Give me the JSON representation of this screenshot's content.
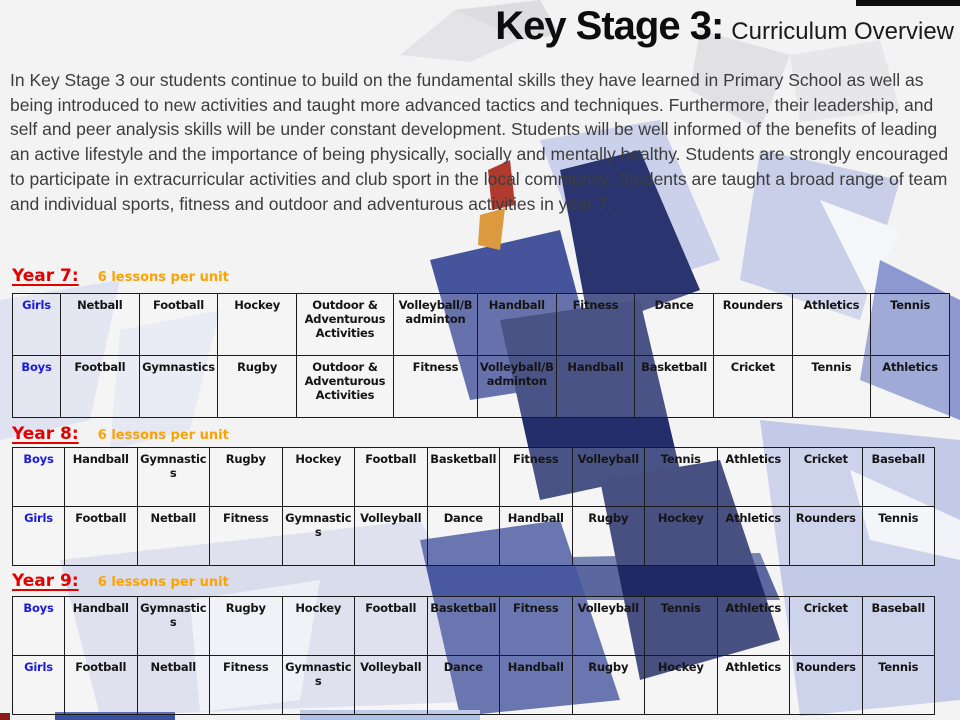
{
  "title": {
    "main": "Key Stage 3:",
    "subtitle": "Curriculum Overview"
  },
  "intro": "In Key Stage 3 our students continue to build on the fundamental skills they have learned in Primary School as well as being introduced to new activities and taught more advanced tactics and techniques. Furthermore, their leadership, and self and peer analysis skills will be under constant development. Students will be well informed of the benefits of leading an active lifestyle and the importance of being physically, socially and mentally healthy. Students are strongly encouraged to participate in extracurricular activities and club sport in the local community. Students are taught a broad range of team and individual sports, fitness and outdoor and adventurous activities in year 7.",
  "colors": {
    "year_heading": "#E50000",
    "lessons_note": "#FFA200",
    "row_label_blue": "#1A1AE0",
    "cell_text": "#151515",
    "background_palette": [
      "#C9CFE9",
      "#46549B",
      "#232E6B",
      "#E4E4E6",
      "#B03A2E",
      "#DC9A3E"
    ]
  },
  "sections": [
    {
      "heading": "Year 7:",
      "note": "6 lessons per unit",
      "rows": [
        {
          "label": "Girls",
          "cells": [
            "Netball",
            "Football",
            "Hockey",
            "Outdoor & Adventurous Activities",
            "Volleyball/Badminton",
            "Handball",
            "Fitness",
            "Dance",
            "Rounders",
            "Athletics",
            "Tennis"
          ]
        },
        {
          "label": "Boys",
          "cells": [
            "Football",
            "Gymnastics",
            "Rugby",
            "Outdoor & Adventurous Activities",
            "Fitness",
            "Volleyball/Badminton",
            "Handball",
            "Basketball",
            "Cricket",
            "Tennis",
            "Athletics"
          ]
        }
      ]
    },
    {
      "heading": "Year 8:",
      "note": "6 lessons per unit",
      "rows": [
        {
          "label": "Boys",
          "cells": [
            "Handball",
            "Gymnastics",
            "Rugby",
            "Hockey",
            "Football",
            "Basketball",
            "Fitness",
            "Volleyball",
            "Tennis",
            "Athletics",
            "Cricket",
            "Baseball"
          ]
        },
        {
          "label": "Girls",
          "cells": [
            "Football",
            "Netball",
            "Fitness",
            "Gymnastics",
            "Volleyball",
            "Dance",
            "Handball",
            "Rugby",
            "Hockey",
            "Athletics",
            "Rounders",
            "Tennis"
          ]
        }
      ]
    },
    {
      "heading": "Year 9:",
      "note": "6 lessons per unit",
      "rows": [
        {
          "label": "Boys",
          "cells": [
            "Handball",
            "Gymnastics",
            "Rugby",
            "Hockey",
            "Football",
            "Basketball",
            "Fitness",
            "Volleyball",
            "Tennis",
            "Athletics",
            "Cricket",
            "Baseball"
          ]
        },
        {
          "label": "Girls",
          "cells": [
            "Football",
            "Netball",
            "Fitness",
            "Gymnastics",
            "Volleyball",
            "Dance",
            "Handball",
            "Rugby",
            "Hockey",
            "Athletics",
            "Rounders",
            "Tennis"
          ]
        }
      ]
    }
  ]
}
